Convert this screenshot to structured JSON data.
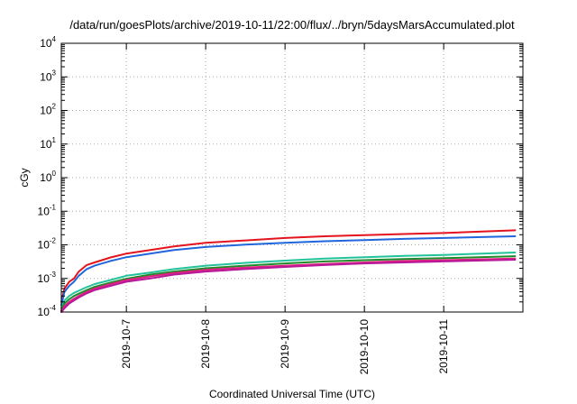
{
  "chart_data": {
    "type": "line",
    "title": "/data/run/goesPlots/archive/2019-10-11/22:00/flux/../bryn/5daysMarsAccumulated.plot",
    "xlabel": "Coordinated Universal Time (UTC)",
    "ylabel": "cGy",
    "y_scale": "log",
    "ylim": [
      0.0001,
      10000
    ],
    "y_ticks": [
      {
        "base": "10",
        "exp": "4",
        "value": 10000
      },
      {
        "base": "10",
        "exp": "3",
        "value": 1000
      },
      {
        "base": "10",
        "exp": "2",
        "value": 100
      },
      {
        "base": "10",
        "exp": "1",
        "value": 10
      },
      {
        "base": "10",
        "exp": "0",
        "value": 1
      },
      {
        "base": "10",
        "exp": "-1",
        "value": 0.1
      },
      {
        "base": "10",
        "exp": "-2",
        "value": 0.01
      },
      {
        "base": "10",
        "exp": "-3",
        "value": 0.001
      },
      {
        "base": "10",
        "exp": "-4",
        "value": 0.0001
      }
    ],
    "x_unit": "days since 2019-10-07",
    "xlim": [
      -0.82,
      4.0
    ],
    "x_ticks": [
      {
        "label": "2019-10-7",
        "value": 0
      },
      {
        "label": "2019-10-8",
        "value": 1
      },
      {
        "label": "2019-10-9",
        "value": 2
      },
      {
        "label": "2019-10-10",
        "value": 3
      },
      {
        "label": "2019-10-11",
        "value": 4
      }
    ],
    "grid": true,
    "grid_style": "dotted",
    "series": [
      {
        "color": "#e4141e",
        "x": [
          -0.82,
          -0.78,
          -0.72,
          -0.66,
          -0.6,
          -0.5,
          -0.4,
          -0.2,
          0,
          0.3,
          0.6,
          1,
          1.5,
          2,
          2.5,
          3,
          3.5,
          4,
          4.9
        ],
        "y": [
          0.0002,
          0.0005,
          0.0008,
          0.001,
          0.0016,
          0.0025,
          0.003,
          0.0042,
          0.0055,
          0.007,
          0.009,
          0.0115,
          0.0135,
          0.016,
          0.018,
          0.0195,
          0.021,
          0.0225,
          0.027
        ]
      },
      {
        "color": "#2266dd",
        "x": [
          -0.82,
          -0.78,
          -0.72,
          -0.66,
          -0.6,
          -0.5,
          -0.4,
          -0.2,
          0,
          0.3,
          0.6,
          1,
          1.5,
          2,
          2.5,
          3,
          3.5,
          4,
          4.9
        ],
        "y": [
          0.00016,
          0.0004,
          0.0006,
          0.0008,
          0.0012,
          0.0019,
          0.0024,
          0.0033,
          0.0043,
          0.0055,
          0.007,
          0.0086,
          0.0102,
          0.0115,
          0.0128,
          0.0138,
          0.015,
          0.016,
          0.018
        ]
      },
      {
        "color": "#22c39a",
        "x": [
          -0.82,
          -0.78,
          -0.72,
          -0.66,
          -0.6,
          -0.5,
          -0.4,
          -0.2,
          0,
          0.3,
          0.6,
          1,
          1.5,
          2,
          2.5,
          3,
          3.5,
          4,
          4.9
        ],
        "y": [
          0.00013,
          0.00022,
          0.0003,
          0.00037,
          0.00043,
          0.00055,
          0.00068,
          0.0009,
          0.0012,
          0.0015,
          0.0019,
          0.0024,
          0.0029,
          0.0034,
          0.0039,
          0.0043,
          0.0047,
          0.005,
          0.0059
        ]
      },
      {
        "color": "#1f8a2a",
        "x": [
          -0.82,
          -0.78,
          -0.72,
          -0.66,
          -0.6,
          -0.5,
          -0.4,
          -0.2,
          0,
          0.3,
          0.6,
          1,
          1.5,
          2,
          2.5,
          3,
          3.5,
          4,
          4.9
        ],
        "y": [
          0.00011,
          0.00018,
          0.00024,
          0.0003,
          0.00035,
          0.00045,
          0.00056,
          0.00075,
          0.00098,
          0.0013,
          0.0016,
          0.002,
          0.0024,
          0.0028,
          0.0032,
          0.0035,
          0.0038,
          0.004,
          0.0046
        ]
      },
      {
        "color": "#e0207e",
        "x": [
          -0.82,
          -0.78,
          -0.72,
          -0.66,
          -0.6,
          -0.5,
          -0.4,
          -0.2,
          0,
          0.3,
          0.6,
          1,
          1.5,
          2,
          2.5,
          3,
          3.5,
          4,
          4.9
        ],
        "y": [
          0.0001,
          0.00015,
          0.0002,
          0.00025,
          0.0003,
          0.0004,
          0.0005,
          0.00068,
          0.0009,
          0.00115,
          0.00145,
          0.0018,
          0.0021,
          0.0024,
          0.0027,
          0.003,
          0.0033,
          0.0035,
          0.0039
        ]
      },
      {
        "color": "#b71899",
        "x": [
          -0.82,
          -0.78,
          -0.72,
          -0.66,
          -0.6,
          -0.5,
          -0.4,
          -0.2,
          0,
          0.3,
          0.6,
          1,
          1.5,
          2,
          2.5,
          3,
          3.5,
          4,
          4.9
        ],
        "y": [
          0.0001,
          0.00013,
          0.00018,
          0.00022,
          0.00027,
          0.00036,
          0.00045,
          0.0006,
          0.0008,
          0.001,
          0.0013,
          0.0016,
          0.0019,
          0.0022,
          0.0025,
          0.0028,
          0.003,
          0.0032,
          0.0036
        ]
      }
    ]
  }
}
